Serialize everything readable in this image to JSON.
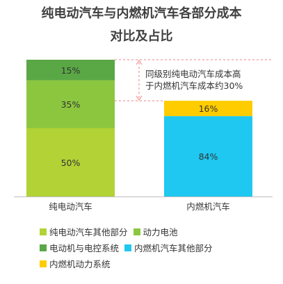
{
  "title_line1": "纯电动汽车与内燃机汽车各部分成本",
  "title_line2": "对比及占比",
  "chart_data": {
    "type": "bar",
    "stacked": true,
    "percent_stacked": true,
    "categories": [
      "纯电动汽车",
      "内燃机汽车"
    ],
    "series": [
      {
        "name": "纯电动汽车其他部分",
        "values": [
          50,
          null
        ],
        "color": "#b2d235",
        "labels": [
          "50%",
          ""
        ]
      },
      {
        "name": "动力电池",
        "values": [
          35,
          null
        ],
        "color": "#8cc63f",
        "labels": [
          "35%",
          ""
        ]
      },
      {
        "name": "电动机与电控系统",
        "values": [
          15,
          null
        ],
        "color": "#5aa746",
        "labels": [
          "15%",
          ""
        ]
      },
      {
        "name": "内燃机汽车其他部分",
        "values": [
          null,
          84
        ],
        "color": "#1ec8f0",
        "labels": [
          "",
          "84%"
        ]
      },
      {
        "name": "内燃机动力系统",
        "values": [
          null,
          16
        ],
        "color": "#ffcc00",
        "labels": [
          "",
          "16%"
        ]
      }
    ],
    "relative_heights": [
      1.0,
      0.7
    ],
    "annotation": "同级别纯电动汽车成本高于内燃机汽车成本约30%",
    "annotation_lines": [
      "同级别纯电动汽车成本高",
      "于内燃机汽车成本约30%"
    ],
    "legend_position": "bottom",
    "grid": false
  },
  "legend": {
    "rows": [
      [
        {
          "label": "纯电动汽车其他部分",
          "color": "#b2d235"
        },
        {
          "label": "动力电池",
          "color": "#8cc63f"
        }
      ],
      [
        {
          "label": "电动机与电控系统",
          "color": "#5aa746"
        },
        {
          "label": "内燃机汽车其他部分",
          "color": "#1ec8f0"
        }
      ],
      [
        {
          "label": "内燃机动力系统",
          "color": "#ffcc00"
        }
      ]
    ]
  },
  "colors": {
    "annotation_line": "#f08080",
    "axis": "#bfbfbf"
  }
}
